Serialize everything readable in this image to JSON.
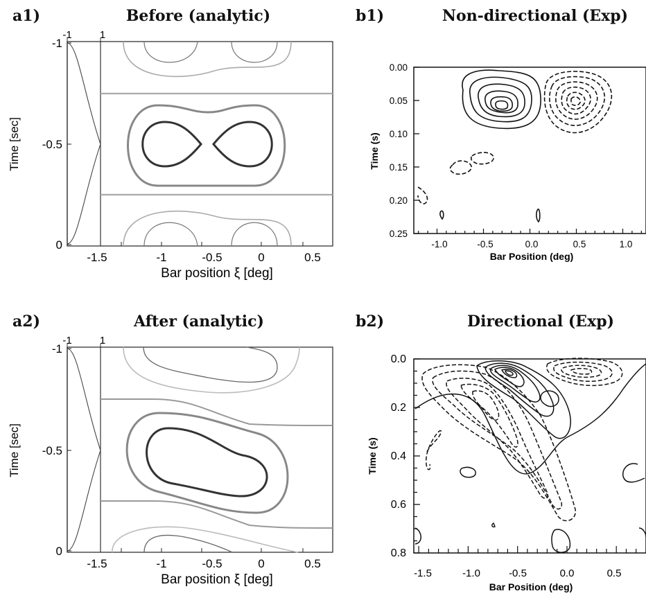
{
  "panels": {
    "a1": {
      "letter": "a1)",
      "title": "Before (analytic)"
    },
    "b1": {
      "letter": "b1)",
      "title": "Non-directional (Exp)"
    },
    "a2": {
      "letter": "a2)",
      "title": "After (analytic)"
    },
    "b2": {
      "letter": "b2)",
      "title": "Directional (Exp)"
    }
  },
  "chart_data": [
    {
      "id": "a1",
      "type": "contour",
      "title": "Before (analytic)",
      "xlabel": "Bar position ξ [deg]",
      "ylabel": "Time [sec]",
      "xlim": [
        -1.55,
        0.65
      ],
      "ylim": [
        -1,
        0
      ],
      "xticks": [
        -1.5,
        -1,
        -0.5,
        0,
        0.5
      ],
      "xtick_labels": [
        "-1.5",
        "-1",
        "-0.5",
        "0",
        "0.5"
      ],
      "yticks": [
        -1,
        -0.5,
        0
      ],
      "ytick_labels": [
        "-1",
        "-0.5",
        "0"
      ],
      "side_profile": {
        "tick_labels": [
          "-1",
          "1"
        ]
      },
      "contours": [
        {
          "level": "outer",
          "shape": "lobes near top/bottom, bands at t=-0.75 and t=-0.25"
        },
        {
          "level": "mid",
          "shape": "peanut centred at (-0.45, -0.5)"
        },
        {
          "level": "inner",
          "shape": "two lobes centred at (-0.87, -0.5) and (-0.03, -0.5)"
        }
      ]
    },
    {
      "id": "b1",
      "type": "contour",
      "title": "Non-directional (Exp)",
      "xlabel": "Bar Position (deg)",
      "ylabel": "Time (s)",
      "xlim": [
        -1.25,
        1.25
      ],
      "ylim": [
        0.25,
        0.0
      ],
      "xticks": [
        -1.0,
        -0.5,
        0.0,
        0.5,
        1.0
      ],
      "xtick_labels": [
        "-1.0",
        "-0.5",
        "0.0",
        "0.5",
        "1.0"
      ],
      "yticks": [
        0.0,
        0.05,
        0.1,
        0.15,
        0.2,
        0.25
      ],
      "ytick_labels": [
        "0.00",
        "0.05",
        "0.10",
        "0.15",
        "0.20",
        "0.25"
      ],
      "peaks": [
        {
          "sign": "positive",
          "x": -0.35,
          "y": 0.065
        },
        {
          "sign": "negative",
          "x": 0.42,
          "y": 0.065
        }
      ]
    },
    {
      "id": "a2",
      "type": "contour",
      "title": "After (analytic)",
      "xlabel": "Bar position ξ [deg]",
      "ylabel": "Time [sec]",
      "xlim": [
        -1.55,
        0.65
      ],
      "ylim": [
        -1,
        0
      ],
      "xticks": [
        -1.5,
        -1,
        -0.5,
        0,
        0.5
      ],
      "xtick_labels": [
        "-1.5",
        "-1",
        "-0.5",
        "0",
        "0.5"
      ],
      "yticks": [
        -1,
        -0.5,
        0
      ],
      "ytick_labels": [
        "-1",
        "-0.5",
        "0"
      ],
      "side_profile": {
        "tick_labels": [
          "-1",
          "1"
        ]
      },
      "contours": [
        {
          "level": "outer",
          "shape": "tilted bands and lobes"
        },
        {
          "level": "mid",
          "shape": "tilted peanut centred at (-0.45, -0.5)"
        },
        {
          "level": "inner",
          "shape": "tilted elongated blob from (-0.9,-0.55) to (-0.05,-0.4)"
        }
      ]
    },
    {
      "id": "b2",
      "type": "contour",
      "title": "Directional (Exp)",
      "xlabel": "Bar Position (deg)",
      "ylabel": "Time (s)",
      "xlim": [
        -1.55,
        0.8
      ],
      "ylim": [
        0.8,
        0.0
      ],
      "xticks": [
        -1.5,
        -1.0,
        -0.5,
        0.0,
        0.5
      ],
      "xtick_labels": [
        "-1.5",
        "-1.0",
        "-0.5",
        "0.0",
        "0.5"
      ],
      "yticks": [
        0.0,
        0.2,
        0.4,
        0.6,
        0.8
      ],
      "ytick_labels": [
        "0.0",
        "0.2",
        "0.4",
        "0.6",
        "0.8"
      ],
      "peaks": [
        {
          "sign": "positive",
          "x": -0.55,
          "y": 0.07
        },
        {
          "sign": "negative",
          "x": 0.05,
          "y": 0.08
        }
      ]
    }
  ]
}
